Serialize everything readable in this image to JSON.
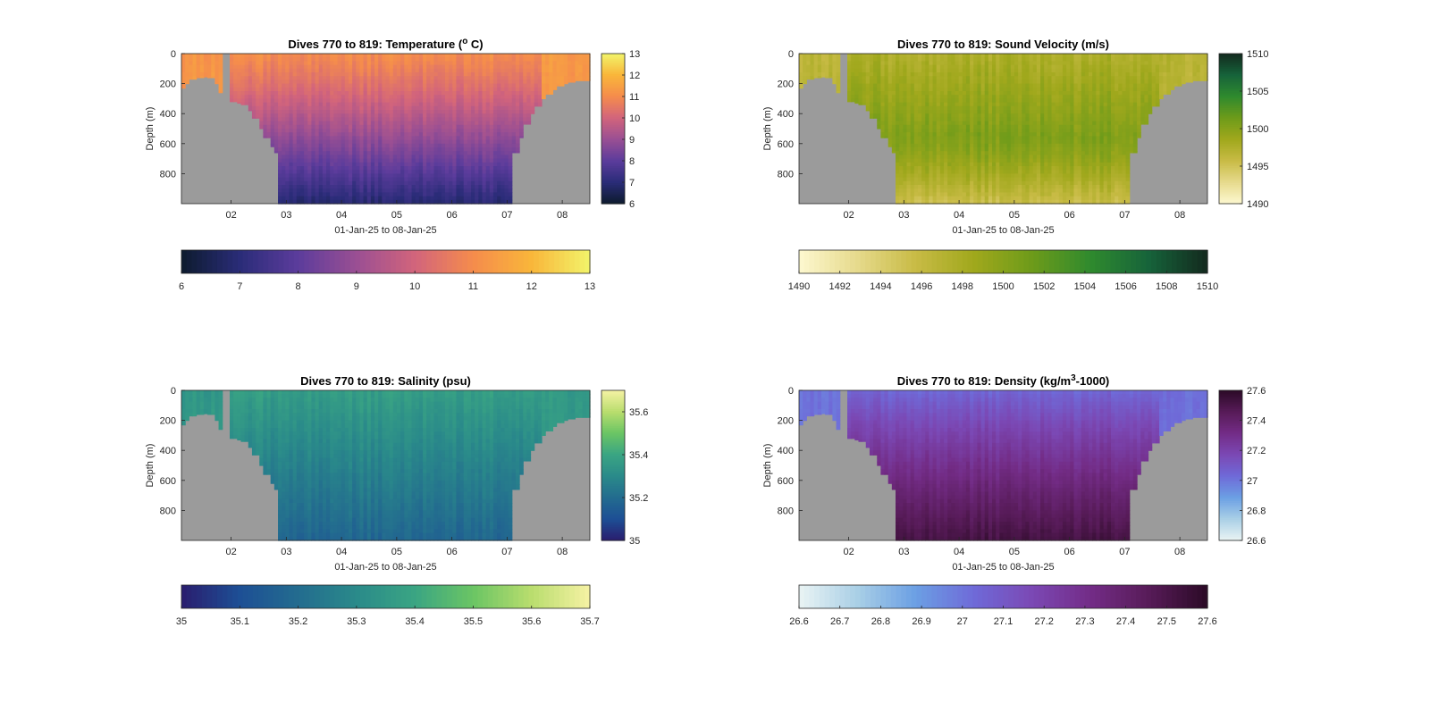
{
  "figure": {
    "background": "#ffffff",
    "land_color": "#9b9b9b"
  },
  "chart_data": [
    {
      "type": "heatmap",
      "title": "Dives 770 to 819: Temperature (°C)",
      "title_text": "Dives 770 to 819: Temperature (",
      "title_sup": "o",
      "title_tail": " C)",
      "xlabel": "01-Jan-25 to 08-Jan-25",
      "ylabel": "Depth (m)",
      "x_ticks": [
        "02",
        "03",
        "04",
        "05",
        "06",
        "07",
        "08"
      ],
      "x_tick_days": [
        2,
        3,
        4,
        5,
        6,
        7,
        8
      ],
      "xlim_days": [
        1.1,
        8.5
      ],
      "y_ticks": [
        "0",
        "200",
        "400",
        "600",
        "800"
      ],
      "y_tick_values": [
        0,
        200,
        400,
        600,
        800
      ],
      "ylim": [
        0,
        1000
      ],
      "field": "temperature",
      "cbar_range": [
        6,
        13
      ],
      "cbar_ticks_side": [
        "6",
        "7",
        "8",
        "9",
        "10",
        "11",
        "12",
        "13"
      ],
      "cbar_ticks_bottom": [
        "6",
        "7",
        "8",
        "9",
        "10",
        "11",
        "12",
        "13"
      ],
      "colormap": [
        "#0d1b2e",
        "#2a2c78",
        "#5c3c9c",
        "#9a4f93",
        "#d2647c",
        "#f58c4c",
        "#f9b63a",
        "#f2f46a"
      ],
      "surface_value": 11.0,
      "deep_value": 6.9
    },
    {
      "type": "heatmap",
      "title": "Dives 770 to 819: Sound Velocity (m/s)",
      "title_text": "Dives 770 to 819: Sound Velocity (m/s)",
      "xlabel": "01-Jan-25 to 08-Jan-25",
      "ylabel": "Depth (m)",
      "x_ticks": [
        "02",
        "03",
        "04",
        "05",
        "06",
        "07",
        "08"
      ],
      "x_tick_days": [
        2,
        3,
        4,
        5,
        6,
        7,
        8
      ],
      "xlim_days": [
        1.1,
        8.5
      ],
      "y_ticks": [
        "0",
        "200",
        "400",
        "600",
        "800"
      ],
      "y_tick_values": [
        0,
        200,
        400,
        600,
        800
      ],
      "ylim": [
        0,
        1000
      ],
      "field": "sound_velocity",
      "cbar_range": [
        1490,
        1510
      ],
      "cbar_ticks_side": [
        "1490",
        "1495",
        "1500",
        "1505",
        "1510"
      ],
      "cbar_ticks_bottom": [
        "1490",
        "1492",
        "1494",
        "1496",
        "1498",
        "1500",
        "1502",
        "1504",
        "1506",
        "1508",
        "1510"
      ],
      "colormap": [
        "#fdf8d0",
        "#e6da8c",
        "#c8bb45",
        "#a0a81c",
        "#6d9b1a",
        "#2f8a2e",
        "#16633a",
        "#132a1e"
      ],
      "surface_value": 1497.5,
      "mid_value": 1500.5,
      "deep_value": 1495.5
    },
    {
      "type": "heatmap",
      "title": "Dives 770 to 819: Salinity (psu)",
      "title_text": "Dives 770 to 819: Salinity (psu)",
      "xlabel": "01-Jan-25 to 08-Jan-25",
      "ylabel": "Depth (m)",
      "x_ticks": [
        "02",
        "03",
        "04",
        "05",
        "06",
        "07",
        "08"
      ],
      "x_tick_days": [
        2,
        3,
        4,
        5,
        6,
        7,
        8
      ],
      "xlim_days": [
        1.1,
        8.5
      ],
      "y_ticks": [
        "0",
        "200",
        "400",
        "600",
        "800"
      ],
      "y_tick_values": [
        0,
        200,
        400,
        600,
        800
      ],
      "ylim": [
        0,
        1000
      ],
      "field": "salinity",
      "cbar_range": [
        35,
        35.7
      ],
      "cbar_ticks_side": [
        "35",
        "35.2",
        "35.4",
        "35.6"
      ],
      "cbar_tick_side_values": [
        35,
        35.2,
        35.4,
        35.6
      ],
      "cbar_ticks_bottom": [
        "35",
        "35.1",
        "35.2",
        "35.3",
        "35.4",
        "35.5",
        "35.6",
        "35.7"
      ],
      "colormap": [
        "#2a1d6e",
        "#1d4f95",
        "#236c8f",
        "#2a8a8a",
        "#3aa583",
        "#6bc564",
        "#b9dd6e",
        "#f6f2a4"
      ],
      "surface_value": 35.37,
      "deep_value": 35.18
    },
    {
      "type": "heatmap",
      "title": "Dives 770 to 819: Density (kg/m³-1000)",
      "title_text": "Dives 770 to 819: Density (kg/m",
      "title_sup": "3",
      "title_tail": "-1000)",
      "xlabel": "01-Jan-25 to 08-Jan-25",
      "ylabel": "Depth (m)",
      "x_ticks": [
        "02",
        "03",
        "04",
        "05",
        "06",
        "07",
        "08"
      ],
      "x_tick_days": [
        2,
        3,
        4,
        5,
        6,
        7,
        8
      ],
      "xlim_days": [
        1.1,
        8.5
      ],
      "y_ticks": [
        "0",
        "200",
        "400",
        "600",
        "800"
      ],
      "y_tick_values": [
        0,
        200,
        400,
        600,
        800
      ],
      "ylim": [
        0,
        1000
      ],
      "field": "density",
      "cbar_range": [
        26.6,
        27.6
      ],
      "cbar_ticks_side": [
        "26.6",
        "26.8",
        "27",
        "27.2",
        "27.4",
        "27.6"
      ],
      "cbar_ticks_bottom": [
        "26.6",
        "26.7",
        "26.8",
        "26.9",
        "27",
        "27.1",
        "27.2",
        "27.3",
        "27.4",
        "27.5",
        "27.6"
      ],
      "colormap": [
        "#eaf4f4",
        "#a9cfe6",
        "#6b9fe4",
        "#6f6ad8",
        "#7b48b4",
        "#732c86",
        "#571b58",
        "#2b0a26"
      ],
      "surface_value": 27.04,
      "deep_value": 27.52
    }
  ]
}
